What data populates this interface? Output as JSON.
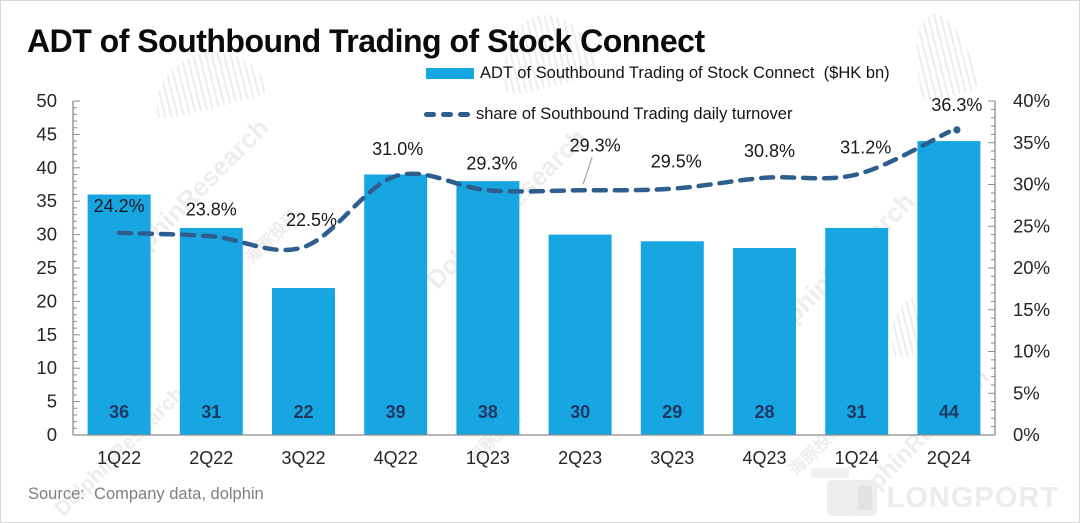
{
  "title": "ADT of Southbound Trading of Stock Connect",
  "legend": [
    {
      "label": "ADT of Southbound Trading of Stock Connect  ($HK bn)",
      "swatch": "bar",
      "color": "#18a6e3"
    },
    {
      "label": "share of Southbound Trading daily turnover",
      "swatch": "dashed-line",
      "color": "#2e5e8e"
    }
  ],
  "source": "Source:  Company data, dolphin",
  "watermark": {
    "cn": "海豚投研",
    "en": "DolphinResearch"
  },
  "logo_text": "LONGPORT",
  "chart_data": {
    "type": "bar",
    "subtype": "combo-bar-line",
    "title": "ADT of Southbound Trading of Stock Connect",
    "categories": [
      "1Q22",
      "2Q22",
      "3Q22",
      "4Q22",
      "1Q23",
      "2Q23",
      "3Q23",
      "4Q23",
      "1Q24",
      "2Q24"
    ],
    "series": [
      {
        "name": "ADT of Southbound Trading of Stock Connect ($HK bn)",
        "type": "bar",
        "axis": "left",
        "color": "#18a6e3",
        "values": [
          36,
          31,
          22,
          39,
          38,
          30,
          29,
          28,
          31,
          44
        ],
        "data_labels": [
          "36",
          "31",
          "22",
          "39",
          "38",
          "30",
          "29",
          "28",
          "31",
          "44"
        ]
      },
      {
        "name": "share of Southbound Trading daily turnover",
        "type": "line",
        "line_style": "dashed",
        "axis": "right",
        "color": "#2e5e8e",
        "values": [
          24.2,
          23.8,
          22.5,
          31.0,
          29.3,
          29.3,
          29.5,
          30.8,
          31.2,
          36.3
        ],
        "data_labels": [
          "24.2%",
          "23.8%",
          "22.5%",
          "31.0%",
          "29.3%",
          "29.3%",
          "29.5%",
          "30.8%",
          "31.2%",
          "36.3%"
        ]
      }
    ],
    "left_axis": {
      "min": 0,
      "max": 50,
      "step": 5,
      "tick_labels": [
        "0",
        "5",
        "10",
        "15",
        "20",
        "25",
        "30",
        "35",
        "40",
        "45",
        "50"
      ]
    },
    "right_axis": {
      "min": 0,
      "max": 40,
      "step": 5,
      "unit": "%",
      "tick_labels": [
        "0%",
        "5%",
        "10%",
        "15%",
        "20%",
        "25%",
        "30%",
        "35%",
        "40%"
      ]
    },
    "grid": false,
    "legend_position": "top"
  }
}
